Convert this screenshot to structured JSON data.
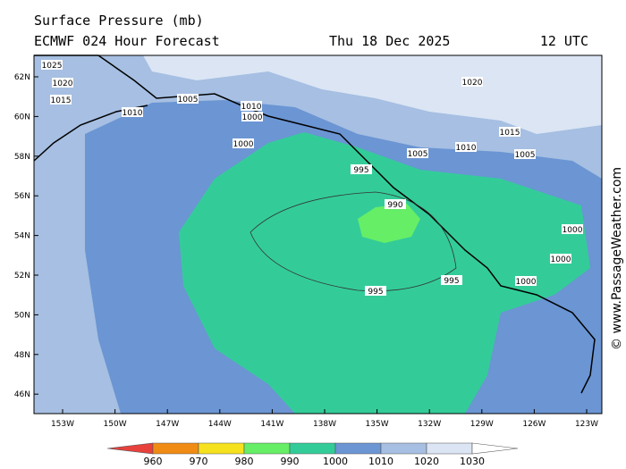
{
  "header": {
    "title": "Surface Pressure (mb)",
    "model": "ECMWF 024 Hour Forecast",
    "date": "Thu 18 Dec 2025",
    "time": "12 UTC"
  },
  "map": {
    "lat_labels": [
      "62N",
      "60N",
      "58N",
      "56N",
      "54N",
      "52N",
      "50N",
      "48N",
      "46N"
    ],
    "lon_labels": [
      "153W",
      "150W",
      "147W",
      "144W",
      "141W",
      "138W",
      "135W",
      "132W",
      "129W",
      "126W",
      "123W"
    ],
    "contour_labels": [
      "1025",
      "1020",
      "1015",
      "1010",
      "1005",
      "1000",
      "1000",
      "995",
      "990",
      "995",
      "995",
      "1000",
      "1000",
      "1005",
      "1010",
      "1015",
      "1020",
      "1010",
      "1005",
      "1000"
    ]
  },
  "colorbar": {
    "labels": [
      "960",
      "970",
      "980",
      "990",
      "1000",
      "1010",
      "1020",
      "1030"
    ],
    "colors": [
      "#e8413c",
      "#f08c14",
      "#f5e11e",
      "#66ee66",
      "#33cc99",
      "#6b95d3",
      "#a6bfe2",
      "#dbe5f4",
      "#ffffff"
    ]
  },
  "credit": "© www.PassageWeather.com"
}
